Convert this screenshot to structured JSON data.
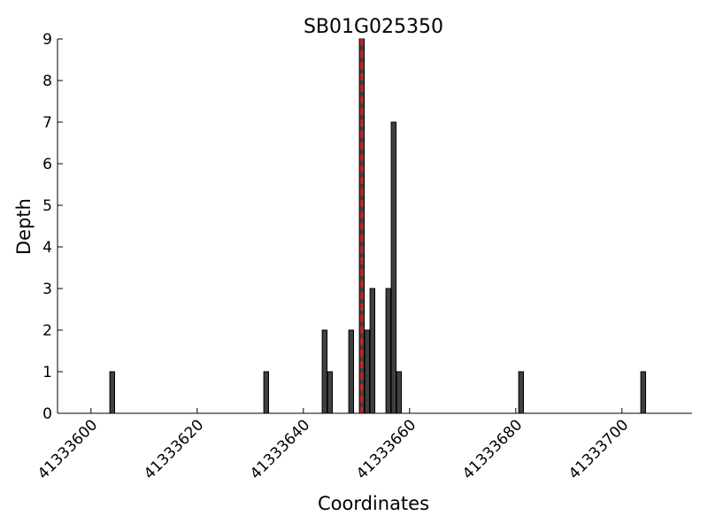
{
  "chart_data": {
    "type": "bar",
    "title": "SB01G025350",
    "x_label": "Coordinates",
    "y_label": "Depth",
    "x": [
      41333604,
      41333633,
      41333644,
      41333645,
      41333649,
      41333651,
      41333652,
      41333653,
      41333656,
      41333657,
      41333658,
      41333681,
      41333704
    ],
    "values": [
      1,
      1,
      2,
      1,
      2,
      9,
      2,
      3,
      3,
      7,
      1,
      1,
      1
    ],
    "color": "#404040",
    "xlim": [
      41333593.7,
      41333713.2
    ],
    "ylim": [
      0,
      9
    ],
    "xticks": [
      41333600,
      41333620,
      41333640,
      41333660,
      41333680,
      41333700
    ],
    "yticks": [
      0,
      1,
      2,
      3,
      4,
      5,
      6,
      7,
      8,
      9
    ],
    "vline": {
      "x": 41333651,
      "color": "#e41a1c"
    },
    "grid": false
  }
}
